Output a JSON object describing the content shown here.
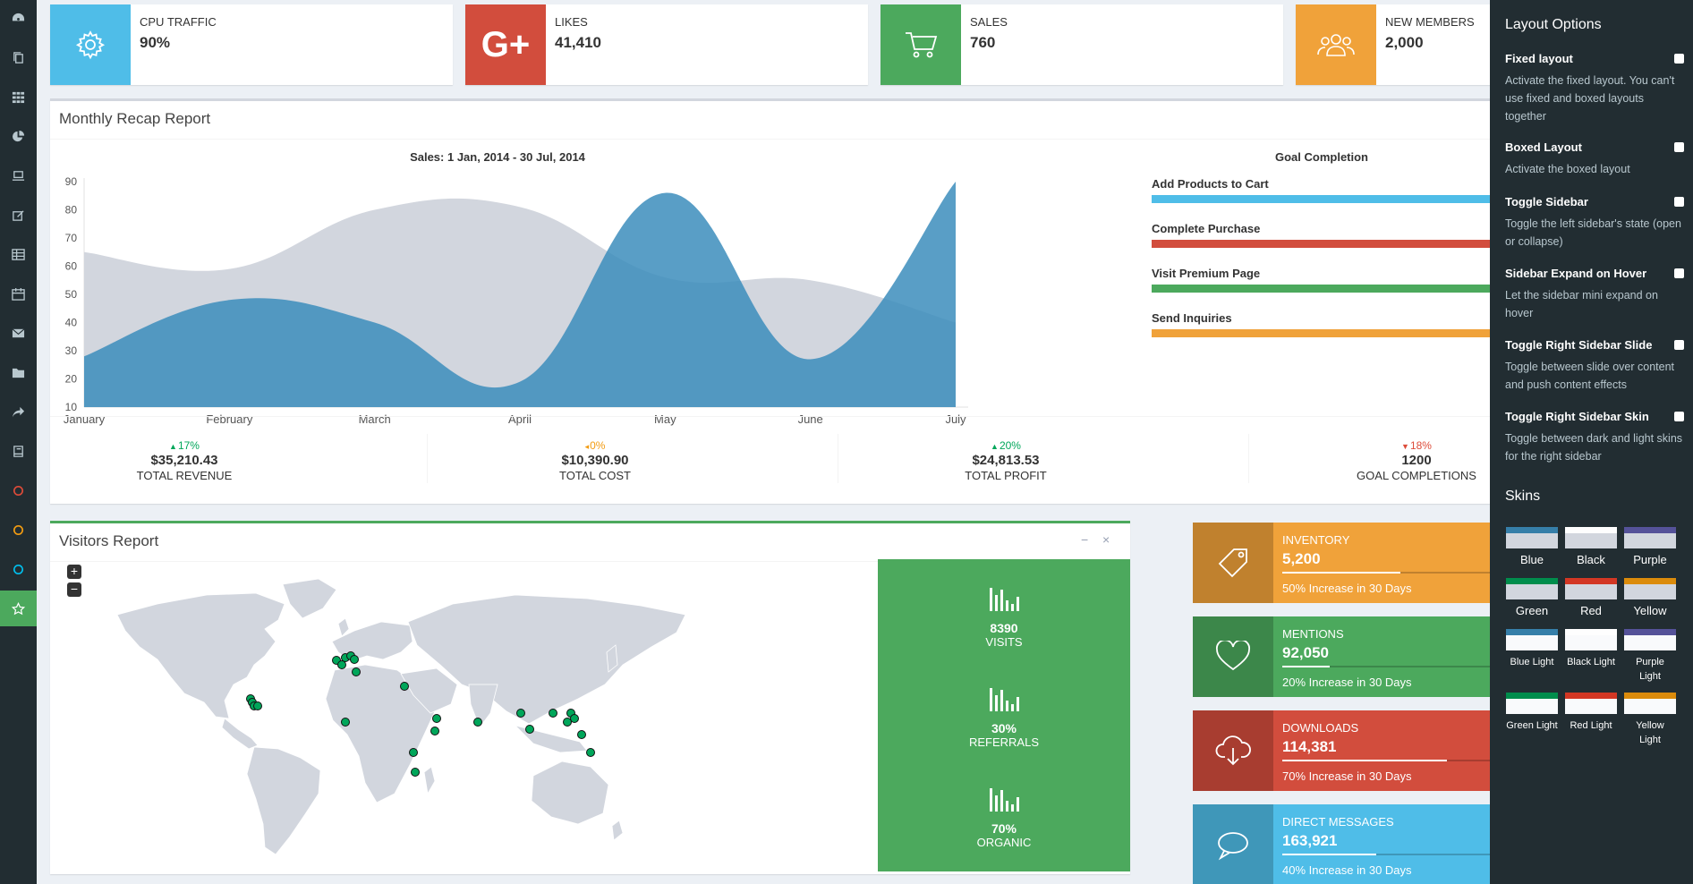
{
  "sidebar": {
    "items": [
      {
        "icon": "dashboard-icon"
      },
      {
        "icon": "files-icon"
      },
      {
        "icon": "th-icon"
      },
      {
        "icon": "pie-chart-icon"
      },
      {
        "icon": "laptop-icon"
      },
      {
        "icon": "edit-icon"
      },
      {
        "icon": "table-icon"
      },
      {
        "icon": "calendar-icon"
      },
      {
        "icon": "envelope-icon"
      },
      {
        "icon": "folder-icon"
      },
      {
        "icon": "share-icon"
      },
      {
        "icon": "book-icon"
      },
      {
        "icon": "circle-red-icon",
        "color": "#dd4b39"
      },
      {
        "icon": "circle-yellow-icon",
        "color": "#f39c12"
      },
      {
        "icon": "circle-aqua-icon",
        "color": "#00c0ef"
      },
      {
        "icon": "star-icon",
        "active": true
      }
    ]
  },
  "info_boxes": [
    {
      "label": "CPU TRAFFIC",
      "value": "90%",
      "color": "#4fbde8",
      "icon": "gear-icon"
    },
    {
      "label": "LIKES",
      "value": "41,410",
      "color": "#d24d3d",
      "icon": "google-plus-icon"
    },
    {
      "label": "SALES",
      "value": "760",
      "color": "#4ca95d",
      "icon": "shopping-cart-icon"
    },
    {
      "label": "NEW MEMBERS",
      "value": "2,000",
      "color": "#f0a23a",
      "icon": "users-icon"
    }
  ],
  "recap": {
    "title": "Monthly Recap Report",
    "chart_title": "Sales: 1 Jan, 2014 - 30 Jul, 2014",
    "goal_title": "Goal Completion",
    "goals": [
      {
        "label": "Add Products to Cart",
        "color": "#4fbde8"
      },
      {
        "label": "Complete Purchase",
        "color": "#d24d3d"
      },
      {
        "label": "Visit Premium Page",
        "color": "#4ca95d"
      },
      {
        "label": "Send Inquiries",
        "color": "#f0a23a"
      }
    ],
    "stats": [
      {
        "pct": "17%",
        "dir": "up",
        "color": "#00a65a",
        "amount": "$35,210.43",
        "label": "TOTAL REVENUE"
      },
      {
        "pct": "0%",
        "dir": "left",
        "color": "#f39c12",
        "amount": "$10,390.90",
        "label": "TOTAL COST"
      },
      {
        "pct": "20%",
        "dir": "up",
        "color": "#00a65a",
        "amount": "$24,813.53",
        "label": "TOTAL PROFIT"
      },
      {
        "pct": "18%",
        "dir": "down",
        "color": "#dd4b39",
        "amount": "1200",
        "label": "GOAL COMPLETIONS"
      }
    ]
  },
  "chart_data": {
    "type": "area",
    "title": "Sales: 1 Jan, 2014 - 30 Jul, 2014",
    "categories": [
      "January",
      "February",
      "March",
      "April",
      "May",
      "June",
      "July"
    ],
    "yticks": [
      10,
      20,
      30,
      40,
      50,
      60,
      70,
      80,
      90
    ],
    "ylim": [
      10,
      90
    ],
    "series": [
      {
        "values": [
          65,
          59,
          80,
          81,
          56,
          55,
          40
        ],
        "color": "#d2d6de"
      },
      {
        "values": [
          28,
          48,
          40,
          19,
          86,
          27,
          90
        ],
        "color": "#3c8dbc"
      }
    ]
  },
  "visitors": {
    "title": "Visitors Report",
    "zoom_in": "+",
    "zoom_out": "−",
    "collapse": "−",
    "close": "×",
    "stats": [
      {
        "num": "8390",
        "label": "VISITS"
      },
      {
        "num": "30%",
        "label": "REFERRALS"
      },
      {
        "num": "70%",
        "label": "ORGANIC"
      }
    ]
  },
  "color_boxes": [
    {
      "label": "INVENTORY",
      "value": "5,200",
      "desc": "50% Increase in 30 Days",
      "color": "#f0a23a",
      "icon": "tag-icon",
      "progress": 0.5
    },
    {
      "label": "MENTIONS",
      "value": "92,050",
      "desc": "20% Increase in 30 Days",
      "color": "#4ca95d",
      "icon": "heart-icon",
      "progress": 0.2
    },
    {
      "label": "DOWNLOADS",
      "value": "114,381",
      "desc": "70% Increase in 30 Days",
      "color": "#d24d3d",
      "icon": "cloud-download-icon",
      "progress": 0.7
    },
    {
      "label": "DIRECT MESSAGES",
      "value": "163,921",
      "desc": "40% Increase in 30 Days",
      "color": "#4fbde8",
      "icon": "comment-icon",
      "progress": 0.4
    }
  ],
  "control": {
    "layout_title": "Layout Options",
    "options": [
      {
        "label": "Fixed layout",
        "desc": "Activate the fixed layout. You can't use fixed and boxed layouts together"
      },
      {
        "label": "Boxed Layout",
        "desc": "Activate the boxed layout"
      },
      {
        "label": "Toggle Sidebar",
        "desc": "Toggle the left sidebar's state (open or collapse)"
      },
      {
        "label": "Sidebar Expand on Hover",
        "desc": "Let the sidebar mini expand on hover"
      },
      {
        "label": "Toggle Right Sidebar Slide",
        "desc": "Toggle between slide over content and push content effects"
      },
      {
        "label": "Toggle Right Sidebar Skin",
        "desc": "Toggle between dark and light skins for the right sidebar"
      }
    ],
    "skins_title": "Skins",
    "skins": [
      {
        "label": "Blue",
        "top": "#367fa9",
        "bottom": "#d2d6de"
      },
      {
        "label": "Black",
        "top": "#fefefe",
        "bottom": "#d2d6de"
      },
      {
        "label": "Purple",
        "top": "#555299",
        "bottom": "#d2d6de"
      },
      {
        "label": "Green",
        "top": "#008d4c",
        "bottom": "#d2d6de"
      },
      {
        "label": "Red",
        "top": "#d33724",
        "bottom": "#d2d6de"
      },
      {
        "label": "Yellow",
        "top": "#db8b0b",
        "bottom": "#d2d6de"
      },
      {
        "label": "Blue Light",
        "top": "#367fa9",
        "bottom": "#f9fafc"
      },
      {
        "label": "Black Light",
        "top": "#fefefe",
        "bottom": "#f9fafc"
      },
      {
        "label": "Purple Light",
        "top": "#555299",
        "bottom": "#f9fafc"
      },
      {
        "label": "Green Light",
        "top": "#008d4c",
        "bottom": "#f9fafc"
      },
      {
        "label": "Red Light",
        "top": "#d33724",
        "bottom": "#f9fafc"
      },
      {
        "label": "Yellow Light",
        "top": "#db8b0b",
        "bottom": "#f9fafc"
      }
    ]
  }
}
